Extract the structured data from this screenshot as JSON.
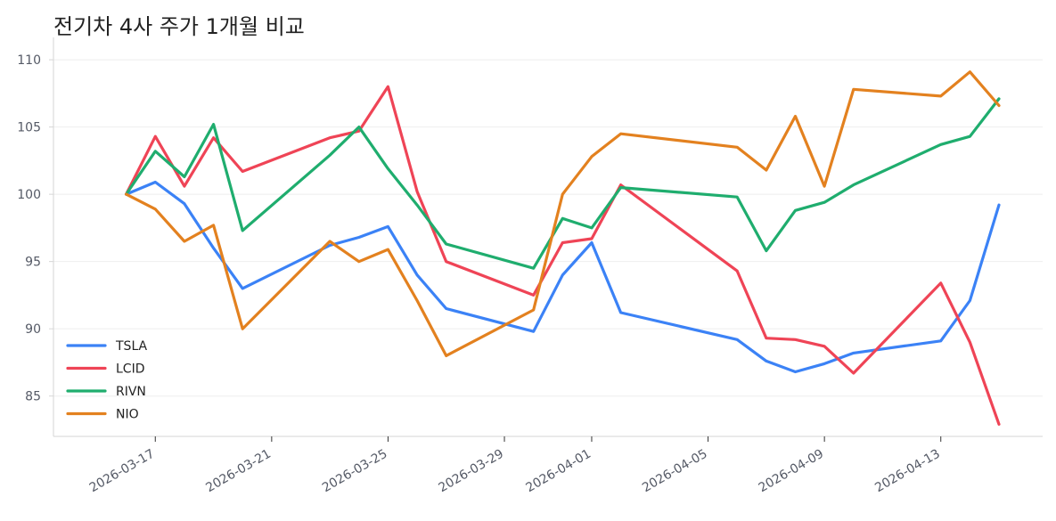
{
  "chart_data": {
    "type": "line",
    "title": "전기차 4사 주가 1개월 비교",
    "xlabel": "",
    "ylabel": "",
    "ylim": [
      82,
      111
    ],
    "yticks": [
      85,
      90,
      95,
      100,
      105,
      110
    ],
    "xticks": [
      "2026-03-17",
      "2026-03-21",
      "2026-03-25",
      "2026-03-29",
      "2026-04-01",
      "2026-04-05",
      "2026-04-09",
      "2026-04-13"
    ],
    "grid": "horizontal",
    "legend_position": "lower-left",
    "dates": [
      "2026-03-16",
      "2026-03-17",
      "2026-03-18",
      "2026-03-19",
      "2026-03-20",
      "2026-03-23",
      "2026-03-24",
      "2026-03-25",
      "2026-03-26",
      "2026-03-27",
      "2026-03-30",
      "2026-03-31",
      "2026-04-01",
      "2026-04-02",
      "2026-04-06",
      "2026-04-07",
      "2026-04-08",
      "2026-04-09",
      "2026-04-10",
      "2026-04-13",
      "2026-04-14",
      "2026-04-15"
    ],
    "series": [
      {
        "name": "TSLA",
        "color": "#3b82f6",
        "values": [
          100.0,
          100.9,
          99.3,
          96.0,
          93.0,
          96.2,
          96.8,
          97.6,
          94.0,
          91.5,
          89.8,
          94.0,
          96.4,
          91.2,
          89.2,
          87.6,
          86.8,
          87.4,
          88.2,
          89.1,
          92.1,
          99.2
        ]
      },
      {
        "name": "LCID",
        "color": "#ef4456",
        "values": [
          100.0,
          104.3,
          100.6,
          104.2,
          101.7,
          104.2,
          104.7,
          108.0,
          100.2,
          95.0,
          92.5,
          96.4,
          96.7,
          100.7,
          94.3,
          89.3,
          89.2,
          88.7,
          86.7,
          93.4,
          89.0,
          82.9
        ]
      },
      {
        "name": "RIVN",
        "color": "#1fad6e",
        "values": [
          100.0,
          103.2,
          101.3,
          105.2,
          97.3,
          102.9,
          105.0,
          101.9,
          99.2,
          96.3,
          94.5,
          98.2,
          97.5,
          100.5,
          99.8,
          95.8,
          98.8,
          99.4,
          100.7,
          103.7,
          104.3,
          107.1
        ]
      },
      {
        "name": "NIO",
        "color": "#e3811f",
        "values": [
          100.0,
          98.9,
          96.5,
          97.7,
          90.0,
          96.5,
          95.0,
          95.9,
          92.1,
          88.0,
          91.4,
          100.0,
          102.8,
          104.5,
          103.5,
          101.8,
          105.8,
          100.6,
          107.8,
          107.3,
          109.1,
          106.6
        ]
      }
    ]
  },
  "colors": {
    "grid": "#eeeeee",
    "axis": "#d6d6d6",
    "tick_text": "#555a66"
  }
}
